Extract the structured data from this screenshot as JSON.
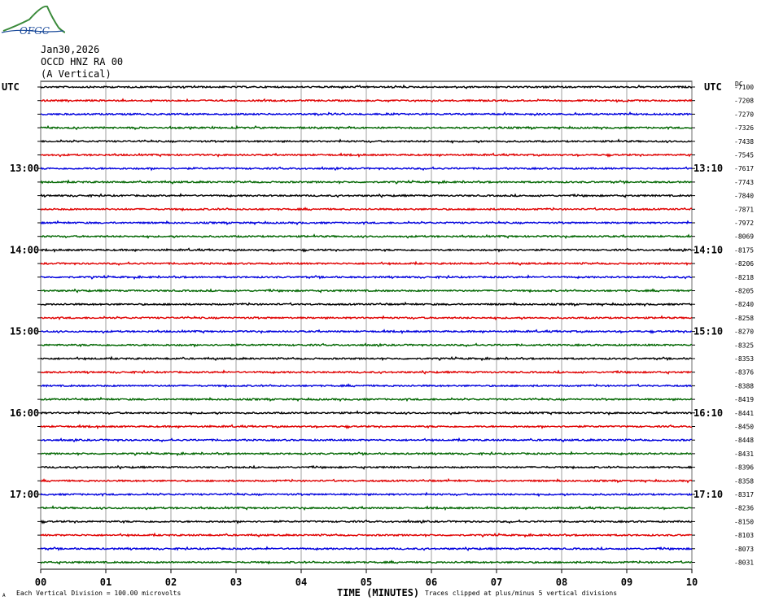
{
  "header": {
    "logo_text": "OFGC",
    "date": "Jan30,2026",
    "station": "OCCD HNZ RA 00",
    "component": "(A Vertical)"
  },
  "colors": {
    "trace_cycle": [
      "#000000",
      "#e00000",
      "#0000dd",
      "#006600"
    ],
    "grid": "#888888",
    "logo_green": "#3a8a3a",
    "logo_blue": "#1a4a9a"
  },
  "chart_data": {
    "type": "line",
    "title": "",
    "xlabel": "TIME (MINUTES)",
    "xlim": [
      0,
      10
    ],
    "x_ticks": [
      "00",
      "01",
      "02",
      "03",
      "04",
      "05",
      "06",
      "07",
      "08",
      "09",
      "10"
    ],
    "left_axis_label": "UTC",
    "right_axis_label": "UTC",
    "left_time_labels": [
      {
        "row": 6,
        "text": "13:00"
      },
      {
        "row": 12,
        "text": "14:00"
      },
      {
        "row": 18,
        "text": "15:00"
      },
      {
        "row": 24,
        "text": "16:00"
      },
      {
        "row": 30,
        "text": "17:00"
      }
    ],
    "right_time_labels": [
      {
        "row": 6,
        "text": "13:10"
      },
      {
        "row": 12,
        "text": "14:10"
      },
      {
        "row": 18,
        "text": "15:10"
      },
      {
        "row": 24,
        "text": "16:10"
      },
      {
        "row": 30,
        "text": "17:10"
      }
    ],
    "right_value_header": "DC",
    "trace_offsets": [
      -7100,
      -7208,
      -7270,
      -7326,
      -7438,
      -7545,
      -7617,
      -7743,
      -7840,
      -7871,
      -7972,
      -8069,
      -8175,
      -8206,
      -8218,
      -8205,
      -8240,
      -8258,
      -8270,
      -8325,
      -8353,
      -8376,
      -8388,
      -8419,
      -8441,
      -8450,
      -8448,
      -8431,
      -8396,
      -8358,
      -8317,
      -8236,
      -8150,
      -8103,
      -8073,
      -8031
    ],
    "footer_left": "Each Vertical Division =  100.00 microvolts",
    "footer_right": "Traces clipped at plus/minus 5 vertical divisions",
    "footer_tiny": "A"
  }
}
